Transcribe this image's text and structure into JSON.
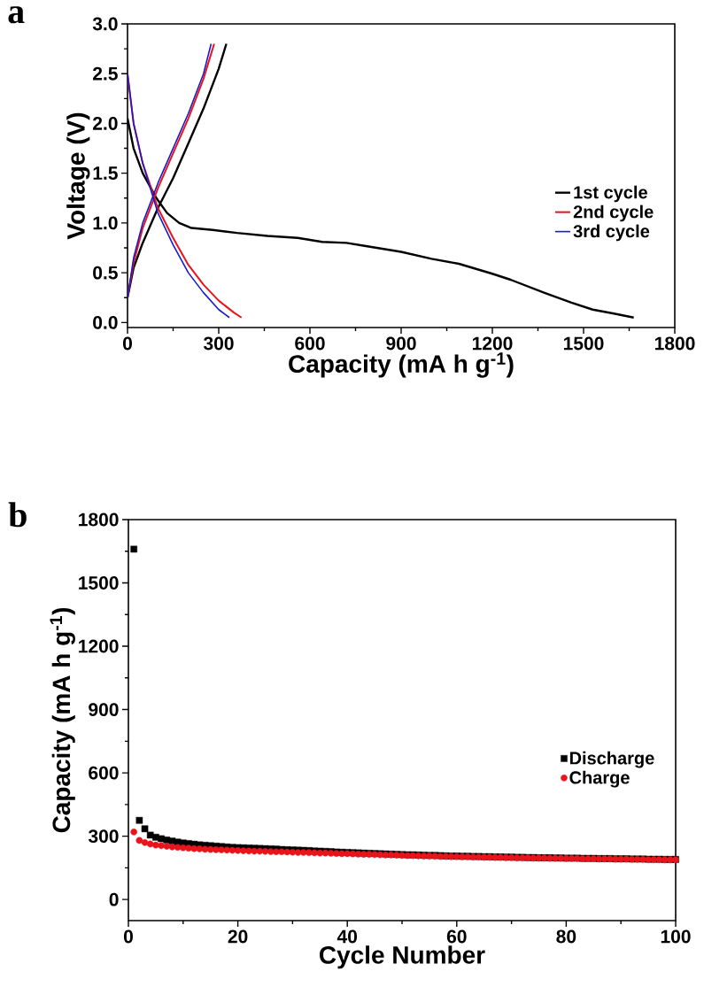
{
  "chart_data": [
    {
      "type": "line",
      "annotations": [
        "a"
      ],
      "xlabel": "Capacity (mA h g$^{-1}$)",
      "ylabel": "Voltage (V)",
      "xlim": [
        0,
        1800
      ],
      "ylim": [
        -0.05,
        3.0
      ],
      "xticks": [
        0,
        300,
        600,
        900,
        1200,
        1500,
        1800
      ],
      "yticks": [
        {
          "value": 0,
          "label": "0.0"
        },
        0.5,
        {
          "value": 1,
          "label": "1.0"
        },
        1.5,
        {
          "value": 2,
          "label": "2.0"
        },
        2.5,
        {
          "value": 3,
          "label": "3.0"
        }
      ],
      "legend": "right",
      "marker": "none",
      "line_style": "solid",
      "series": [
        {
          "name": "1st cycle",
          "color": "#000000",
          "x": [
            0,
            20,
            50,
            95,
            130,
            170,
            210,
            280,
            360,
            460,
            560,
            640,
            720,
            780,
            820,
            900,
            1000,
            1090,
            1200,
            1260,
            1370,
            1460,
            1530,
            1600,
            1665,
            null,
            0,
            20,
            50,
            100,
            150,
            200,
            250,
            300,
            325
          ],
          "values": [
            2.05,
            1.75,
            1.5,
            1.25,
            1.1,
            1.0,
            0.95,
            0.93,
            0.9,
            0.87,
            0.85,
            0.81,
            0.8,
            0.77,
            0.75,
            0.71,
            0.64,
            0.59,
            0.49,
            0.43,
            0.3,
            0.2,
            0.13,
            0.09,
            0.05,
            null,
            0.25,
            0.55,
            0.8,
            1.15,
            1.45,
            1.8,
            2.15,
            2.55,
            2.8
          ]
        },
        {
          "name": "2nd cycle",
          "color": "#e8141c",
          "x": [
            0,
            20,
            50,
            100,
            150,
            200,
            250,
            300,
            350,
            375,
            null,
            0,
            20,
            50,
            100,
            150,
            200,
            250,
            285
          ],
          "values": [
            2.5,
            2.0,
            1.6,
            1.15,
            0.85,
            0.58,
            0.38,
            0.22,
            0.1,
            0.05,
            null,
            0.25,
            0.6,
            0.95,
            1.35,
            1.7,
            2.05,
            2.45,
            2.8
          ]
        },
        {
          "name": "3rd cycle",
          "color": "#1a1acc",
          "x": [
            0,
            20,
            50,
            100,
            150,
            200,
            250,
            300,
            335,
            null,
            0,
            20,
            50,
            100,
            150,
            200,
            250,
            275
          ],
          "values": [
            2.5,
            2.0,
            1.6,
            1.1,
            0.78,
            0.5,
            0.3,
            0.13,
            0.05,
            null,
            0.25,
            0.65,
            1.0,
            1.4,
            1.75,
            2.1,
            2.5,
            2.8
          ]
        }
      ]
    },
    {
      "type": "scatter",
      "annotations": [
        "b"
      ],
      "xlabel": "Cycle Number",
      "ylabel": "Capacity (mA h g$^{-1}$)",
      "xlim": [
        0,
        100
      ],
      "ylim": [
        -100,
        1800
      ],
      "xticks": [
        0,
        20,
        40,
        60,
        80,
        100
      ],
      "yticks": [
        0,
        300,
        600,
        900,
        1200,
        1500,
        1800
      ],
      "legend": "right",
      "x": [
        1,
        2,
        3,
        4,
        5,
        6,
        7,
        8,
        9,
        10,
        11,
        12,
        13,
        14,
        15,
        16,
        17,
        18,
        19,
        20,
        21,
        22,
        23,
        24,
        25,
        26,
        27,
        28,
        29,
        30,
        31,
        32,
        33,
        34,
        35,
        36,
        37,
        38,
        39,
        40,
        41,
        42,
        43,
        44,
        45,
        46,
        47,
        48,
        49,
        50,
        51,
        52,
        53,
        54,
        55,
        56,
        57,
        58,
        59,
        60,
        61,
        62,
        63,
        64,
        65,
        66,
        67,
        68,
        69,
        70,
        71,
        72,
        73,
        74,
        75,
        76,
        77,
        78,
        79,
        80,
        81,
        82,
        83,
        84,
        85,
        86,
        87,
        88,
        89,
        90,
        91,
        92,
        93,
        94,
        95,
        96,
        97,
        98,
        99,
        100
      ],
      "series": [
        {
          "name": "Discharge",
          "color": "#000000",
          "marker": "square",
          "values": [
            1660,
            375,
            335,
            305,
            295,
            288,
            282,
            277,
            272,
            268,
            265,
            262,
            259,
            257,
            255,
            253,
            251,
            249,
            247,
            246,
            245,
            244,
            243,
            242,
            241,
            240,
            239,
            237,
            236,
            235,
            234,
            233,
            232,
            230,
            229,
            228,
            227,
            225,
            224,
            223,
            222,
            221,
            220,
            219,
            218,
            217,
            216,
            215,
            214,
            213,
            212,
            212,
            211,
            210,
            209,
            209,
            208,
            207,
            206,
            206,
            205,
            205,
            204,
            204,
            203,
            203,
            202,
            202,
            201,
            201,
            200,
            200,
            199,
            199,
            198,
            198,
            198,
            197,
            197,
            196,
            196,
            196,
            195,
            195,
            195,
            194,
            194,
            194,
            193,
            193,
            193,
            192,
            192,
            192,
            191,
            191,
            191,
            190,
            190,
            190
          ]
        },
        {
          "name": "Charge",
          "color": "#e8141c",
          "marker": "circle",
          "values": [
            320,
            280,
            270,
            263,
            258,
            255,
            252,
            249,
            247,
            245,
            243,
            241,
            240,
            238,
            237,
            236,
            235,
            234,
            233,
            232,
            231,
            230,
            229,
            229,
            228,
            227,
            226,
            226,
            225,
            224,
            223,
            223,
            222,
            221,
            220,
            220,
            219,
            218,
            217,
            217,
            216,
            215,
            214,
            214,
            213,
            212,
            211,
            211,
            210,
            209,
            208,
            208,
            207,
            206,
            206,
            205,
            204,
            204,
            203,
            203,
            202,
            202,
            201,
            201,
            200,
            200,
            199,
            199,
            198,
            198,
            197,
            197,
            197,
            196,
            196,
            196,
            195,
            195,
            195,
            194,
            194,
            194,
            193,
            193,
            193,
            192,
            192,
            192,
            191,
            191,
            191,
            190,
            190,
            190,
            189,
            189,
            189,
            188,
            188,
            188
          ]
        }
      ]
    }
  ]
}
